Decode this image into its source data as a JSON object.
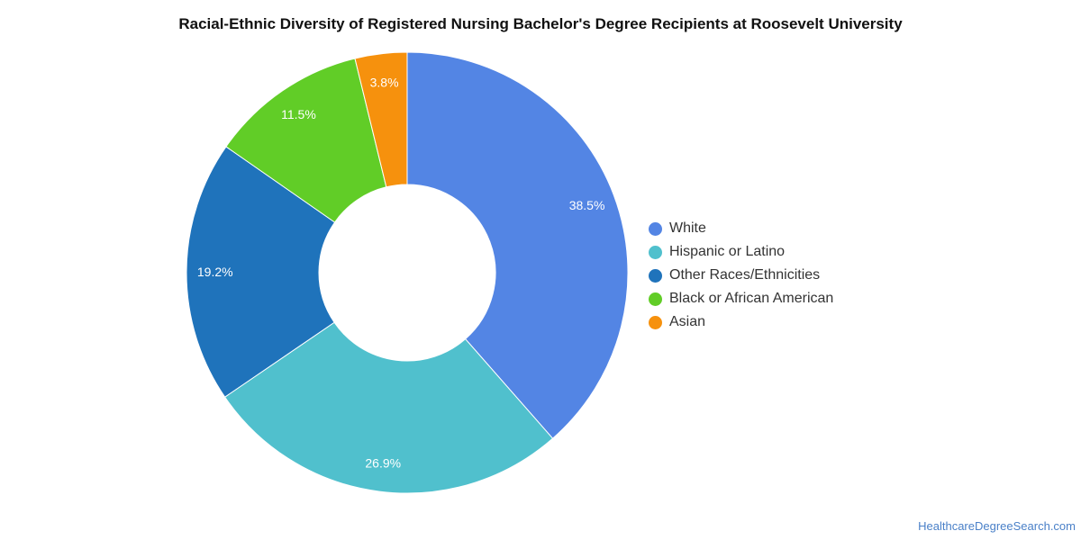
{
  "chart_data": {
    "type": "pie",
    "variant": "donut",
    "title": "Racial-Ethnic Diversity of Registered Nursing Bachelor's Degree Recipients at Roosevelt University",
    "slices": [
      {
        "label": "White",
        "value": 38.5,
        "display": "38.5%",
        "color": "#5385e4"
      },
      {
        "label": "Hispanic or Latino",
        "value": 26.9,
        "display": "26.9%",
        "color": "#50c0cd"
      },
      {
        "label": "Other Races/Ethnicities",
        "value": 19.2,
        "display": "19.2%",
        "color": "#1f73bb"
      },
      {
        "label": "Black or African American",
        "value": 11.5,
        "display": "11.5%",
        "color": "#61cd27"
      },
      {
        "label": "Asian",
        "value": 3.8,
        "display": "3.8%",
        "color": "#f6910d"
      }
    ],
    "legend_position": "right"
  },
  "source": "HealthcareDegreeSearch.com"
}
